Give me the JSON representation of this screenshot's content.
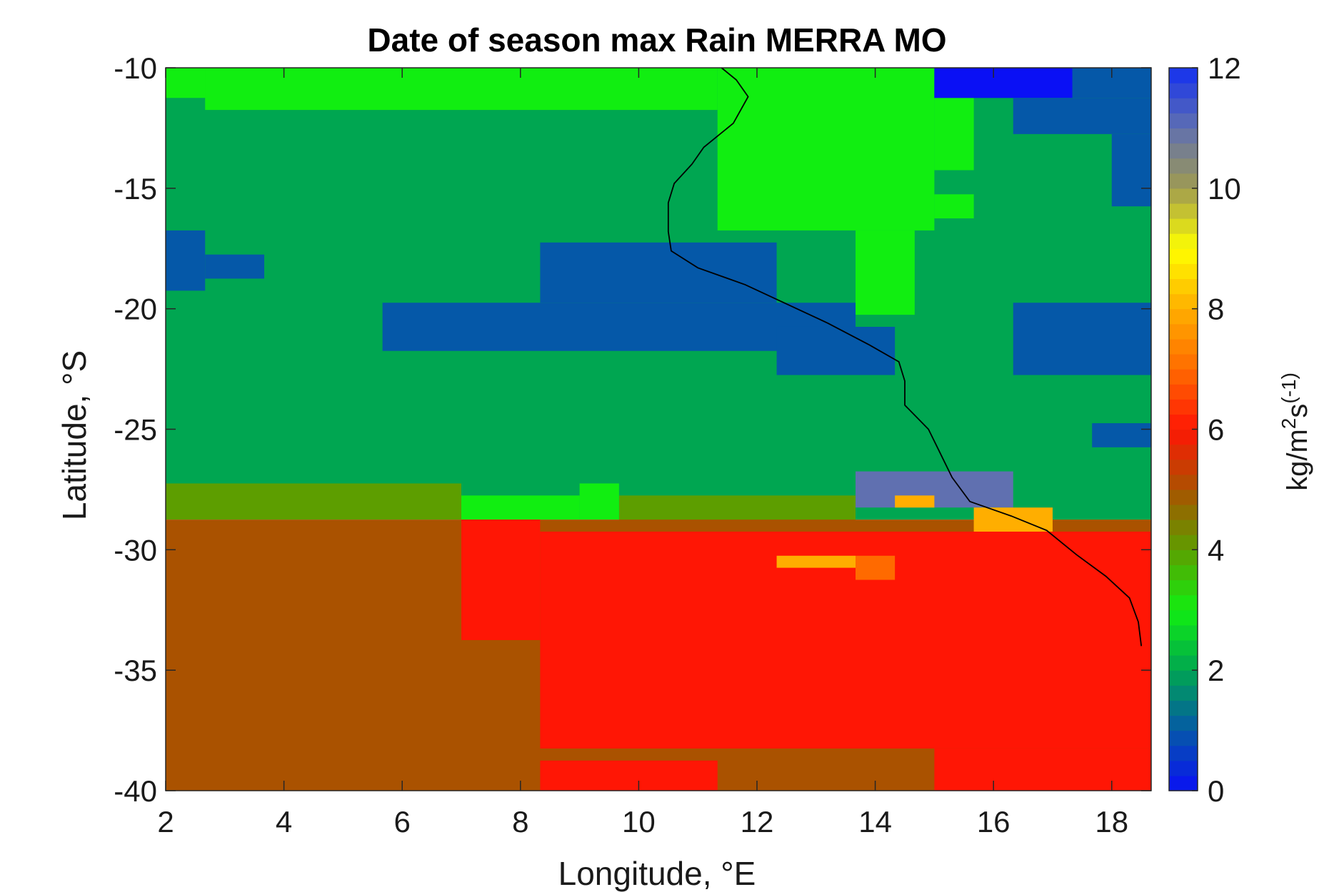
{
  "chart_data": {
    "type": "heatmap",
    "title": "Date of season max Rain MERRA MO",
    "xlabel": "Longitude, °E",
    "ylabel": "Latitude, °S",
    "colorbar_label_parts": [
      "kg/m",
      "2",
      "s",
      "(-1)"
    ],
    "xlim": [
      2,
      18.667
    ],
    "ylim": [
      -40,
      -10
    ],
    "clim": [
      0,
      12
    ],
    "x_ticks": [
      2,
      4,
      6,
      8,
      10,
      12,
      14,
      16,
      18
    ],
    "y_ticks": [
      -10,
      -15,
      -20,
      -25,
      -30,
      -35,
      -40
    ],
    "colorbar_ticks": [
      0,
      2,
      4,
      6,
      8,
      10,
      12
    ],
    "grid": false,
    "colormap": "blue-green-brown-red-orange-yellow-gray-blue",
    "colormap_stops": [
      {
        "v": 0,
        "color": "#0a10f5"
      },
      {
        "v": 1,
        "color": "#0558a8"
      },
      {
        "v": 2,
        "color": "#00a651"
      },
      {
        "v": 3,
        "color": "#11ee11"
      },
      {
        "v": 4,
        "color": "#5d9e00"
      },
      {
        "v": 5,
        "color": "#aa5200"
      },
      {
        "v": 6,
        "color": "#ff1605"
      },
      {
        "v": 7,
        "color": "#ff6a00"
      },
      {
        "v": 8,
        "color": "#ffae00"
      },
      {
        "v": 9,
        "color": "#ffff00"
      },
      {
        "v": 10,
        "color": "#a09b50"
      },
      {
        "v": 11,
        "color": "#6070b0"
      },
      {
        "v": 12,
        "color": "#1330f0"
      }
    ],
    "grid_spacing": {
      "lon": 0.6667,
      "lat": 0.5
    },
    "regions": [
      {
        "lon": [
          2,
          18.667
        ],
        "lat": [
          -28.75,
          -10
        ],
        "value": 2
      },
      {
        "lon": [
          11.333,
          15.0
        ],
        "lat": [
          -16.75,
          -10
        ],
        "value": 3
      },
      {
        "lon": [
          13.667,
          14.667
        ],
        "lat": [
          -20.25,
          -16.75
        ],
        "value": 3
      },
      {
        "lon": [
          2,
          3.0
        ],
        "lat": [
          -11.25,
          -10
        ],
        "value": 3
      },
      {
        "lon": [
          2.667,
          11.333
        ],
        "lat": [
          -11.75,
          -10
        ],
        "value": 3
      },
      {
        "lon": [
          15.0,
          15.667
        ],
        "lat": [
          -14.25,
          -10
        ],
        "value": 3
      },
      {
        "lon": [
          15.0,
          15.667
        ],
        "lat": [
          -16.25,
          -15.25
        ],
        "value": 3
      },
      {
        "lon": [
          15.0,
          18.667
        ],
        "lat": [
          -11.25,
          -10
        ],
        "value": 1
      },
      {
        "lon": [
          15.0,
          17.333
        ],
        "lat": [
          -11.25,
          -10
        ],
        "value": 0
      },
      {
        "lon": [
          16.333,
          18.667
        ],
        "lat": [
          -12.75,
          -11.25
        ],
        "value": 1
      },
      {
        "lon": [
          18.0,
          18.667
        ],
        "lat": [
          -15.75,
          -12.75
        ],
        "value": 1
      },
      {
        "lon": [
          2,
          2.667
        ],
        "lat": [
          -19.25,
          -16.75
        ],
        "value": 1
      },
      {
        "lon": [
          2.667,
          3.667
        ],
        "lat": [
          -18.75,
          -17.75
        ],
        "value": 1
      },
      {
        "lon": [
          5.667,
          13.667
        ],
        "lat": [
          -21.75,
          -19.75
        ],
        "value": 1
      },
      {
        "lon": [
          8.333,
          12.333
        ],
        "lat": [
          -19.75,
          -17.25
        ],
        "value": 1
      },
      {
        "lon": [
          12.333,
          14.333
        ],
        "lat": [
          -22.75,
          -20.75
        ],
        "value": 1
      },
      {
        "lon": [
          16.333,
          18.667
        ],
        "lat": [
          -22.75,
          -19.75
        ],
        "value": 1
      },
      {
        "lon": [
          17.667,
          18.667
        ],
        "lat": [
          -25.75,
          -24.75
        ],
        "value": 1
      },
      {
        "lon": [
          13.667,
          16.333
        ],
        "lat": [
          -28.25,
          -26.75
        ],
        "value": 11
      },
      {
        "lon": [
          2,
          7.0
        ],
        "lat": [
          -28.75,
          -27.25
        ],
        "value": 4
      },
      {
        "lon": [
          9.667,
          13.667
        ],
        "lat": [
          -30.75,
          -27.75
        ],
        "value": 4
      },
      {
        "lon": [
          7.0,
          9.0
        ],
        "lat": [
          -28.75,
          -27.75
        ],
        "value": 3
      },
      {
        "lon": [
          9.0,
          9.667
        ],
        "lat": [
          -28.75,
          -27.25
        ],
        "value": 3
      },
      {
        "lon": [
          17.0,
          18.667
        ],
        "lat": [
          -29.25,
          -28.75
        ],
        "value": 3
      },
      {
        "lon": [
          2,
          18.667
        ],
        "lat": [
          -40,
          -28.75
        ],
        "value": 5
      },
      {
        "lon": [
          8.333,
          18.667
        ],
        "lat": [
          -38.25,
          -29.25
        ],
        "value": 6
      },
      {
        "lon": [
          7.0,
          8.333
        ],
        "lat": [
          -33.75,
          -28.75
        ],
        "value": 6
      },
      {
        "lon": [
          12.333,
          13.667
        ],
        "lat": [
          -30.75,
          -30.25
        ],
        "value": 8
      },
      {
        "lon": [
          13.667,
          14.333
        ],
        "lat": [
          -31.25,
          -30.25
        ],
        "value": 7
      },
      {
        "lon": [
          14.333,
          15.0
        ],
        "lat": [
          -28.25,
          -27.75
        ],
        "value": 8
      },
      {
        "lon": [
          15.667,
          17.0
        ],
        "lat": [
          -29.25,
          -28.25
        ],
        "value": 8
      },
      {
        "lon": [
          8.333,
          11.333
        ],
        "lat": [
          -40,
          -38.75
        ],
        "value": 6
      },
      {
        "lon": [
          15.0,
          18.667
        ],
        "lat": [
          -40,
          -38.25
        ],
        "value": 6
      }
    ],
    "coastline": [
      [
        11.4,
        -10.0
      ],
      [
        11.65,
        -10.5
      ],
      [
        11.85,
        -11.2
      ],
      [
        11.6,
        -12.3
      ],
      [
        11.1,
        -13.3
      ],
      [
        10.9,
        -14.0
      ],
      [
        10.6,
        -14.8
      ],
      [
        10.5,
        -15.6
      ],
      [
        10.5,
        -16.8
      ],
      [
        10.55,
        -17.6
      ],
      [
        11.0,
        -18.3
      ],
      [
        11.8,
        -19.0
      ],
      [
        12.5,
        -19.8
      ],
      [
        13.2,
        -20.6
      ],
      [
        13.9,
        -21.5
      ],
      [
        14.4,
        -22.2
      ],
      [
        14.5,
        -23.0
      ],
      [
        14.5,
        -24.0
      ],
      [
        14.9,
        -25.0
      ],
      [
        15.1,
        -26.0
      ],
      [
        15.3,
        -27.0
      ],
      [
        15.6,
        -28.0
      ],
      [
        16.3,
        -28.6
      ],
      [
        16.9,
        -29.2
      ],
      [
        17.4,
        -30.2
      ],
      [
        17.9,
        -31.1
      ],
      [
        18.3,
        -32.0
      ],
      [
        18.45,
        -33.0
      ],
      [
        18.5,
        -34.0
      ]
    ],
    "coastline_color": "#000000"
  }
}
